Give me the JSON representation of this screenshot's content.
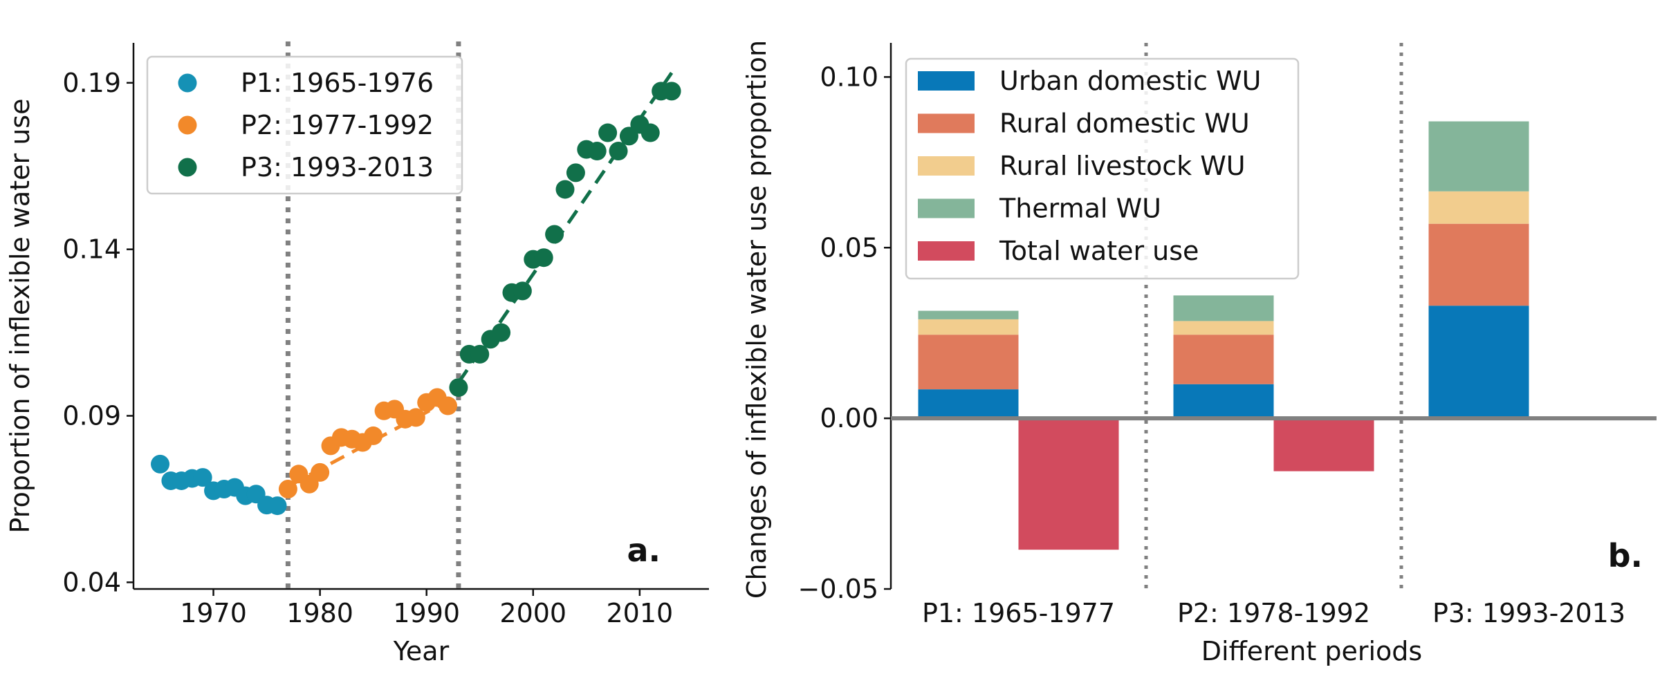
{
  "colors": {
    "p1": "#1591b5",
    "p2": "#f2892a",
    "p3": "#11704a",
    "urban": "#0878b8",
    "rural_domestic": "#e07a5c",
    "livestock": "#f2cd8e",
    "thermal": "#84b59a",
    "total": "#d24b5e",
    "divider": "#808080"
  },
  "chart_data": [
    {
      "type": "scatter",
      "panel_label": "a.",
      "xlabel": "Year",
      "ylabel": "Proportion of inflexible water use",
      "xlim": [
        1962.5,
        2016.5
      ],
      "ylim": [
        0.038,
        0.202
      ],
      "xticks": [
        1970,
        1980,
        1990,
        2000,
        2010
      ],
      "xtick_labels": [
        "1970",
        "1980",
        "1990",
        "2000",
        "2010"
      ],
      "yticks": [
        0.04,
        0.09,
        0.14,
        0.19
      ],
      "ytick_labels": [
        "0.04",
        "0.09",
        "0.14",
        "0.19"
      ],
      "dividers": [
        1977,
        1993
      ],
      "legend_position": "top-left",
      "series": [
        {
          "name": "P1: 1965-1976",
          "color_key": "p1",
          "x": [
            1965,
            1966,
            1967,
            1968,
            1969,
            1970,
            1971,
            1972,
            1973,
            1974,
            1975,
            1976
          ],
          "y": [
            0.0755,
            0.0705,
            0.0705,
            0.0712,
            0.0715,
            0.0675,
            0.068,
            0.0685,
            0.066,
            0.0665,
            0.0632,
            0.063
          ]
        },
        {
          "name": "P2: 1977-1992",
          "color_key": "p2",
          "x": [
            1977,
            1978,
            1979,
            1980,
            1981,
            1982,
            1983,
            1984,
            1985,
            1986,
            1987,
            1988,
            1989,
            1990,
            1991,
            1992
          ],
          "y": [
            0.068,
            0.0725,
            0.0695,
            0.073,
            0.081,
            0.0835,
            0.083,
            0.082,
            0.084,
            0.0915,
            0.092,
            0.089,
            0.0895,
            0.094,
            0.0955,
            0.093
          ],
          "trend": {
            "x": [
              1977,
              1992
            ],
            "y": [
              0.0688,
              0.0945
            ]
          }
        },
        {
          "name": "P3: 1993-2013",
          "color_key": "p3",
          "x": [
            1993,
            1994,
            1995,
            1996,
            1997,
            1998,
            1999,
            2000,
            2001,
            2002,
            2003,
            2004,
            2005,
            2006,
            2007,
            2008,
            2009,
            2010,
            2011,
            2012,
            2013
          ],
          "y": [
            0.0985,
            0.1085,
            0.1085,
            0.113,
            0.115,
            0.127,
            0.1275,
            0.137,
            0.1375,
            0.1445,
            0.158,
            0.163,
            0.17,
            0.1695,
            0.175,
            0.1695,
            0.174,
            0.1775,
            0.175,
            0.1875,
            0.1875
          ],
          "trend": {
            "x": [
              1993,
              2013
            ],
            "y": [
              0.1,
              0.193
            ]
          }
        }
      ]
    },
    {
      "type": "bar",
      "stacked": true,
      "panel_label": "b.",
      "xlabel": "Different periods",
      "ylabel": "Changes of inflexible water use proportion",
      "ylim": [
        -0.05,
        0.11
      ],
      "yticks": [
        -0.05,
        0.0,
        0.05,
        0.1
      ],
      "ytick_labels": [
        "−0.05",
        "0.00",
        "0.05",
        "0.10"
      ],
      "categories": [
        "P1: 1965-1977",
        "P2: 1978-1992",
        "P3: 1993-2013"
      ],
      "legend_position": "top-left",
      "series": [
        {
          "name": "Urban domestic WU",
          "color_key": "urban",
          "values": [
            0.0085,
            0.01,
            0.033
          ],
          "stack": "components"
        },
        {
          "name": "Rural domestic WU",
          "color_key": "rural_domestic",
          "values": [
            0.016,
            0.0145,
            0.024
          ],
          "stack": "components"
        },
        {
          "name": "Rural livestock WU",
          "color_key": "livestock",
          "values": [
            0.0045,
            0.004,
            0.0095
          ],
          "stack": "components"
        },
        {
          "name": "Thermal WU",
          "color_key": "thermal",
          "values": [
            0.0025,
            0.0075,
            0.0205
          ],
          "stack": "components"
        },
        {
          "name": "Total water use",
          "color_key": "total",
          "values": [
            -0.0385,
            -0.0155,
            0.0
          ],
          "stack": "total"
        }
      ]
    }
  ]
}
